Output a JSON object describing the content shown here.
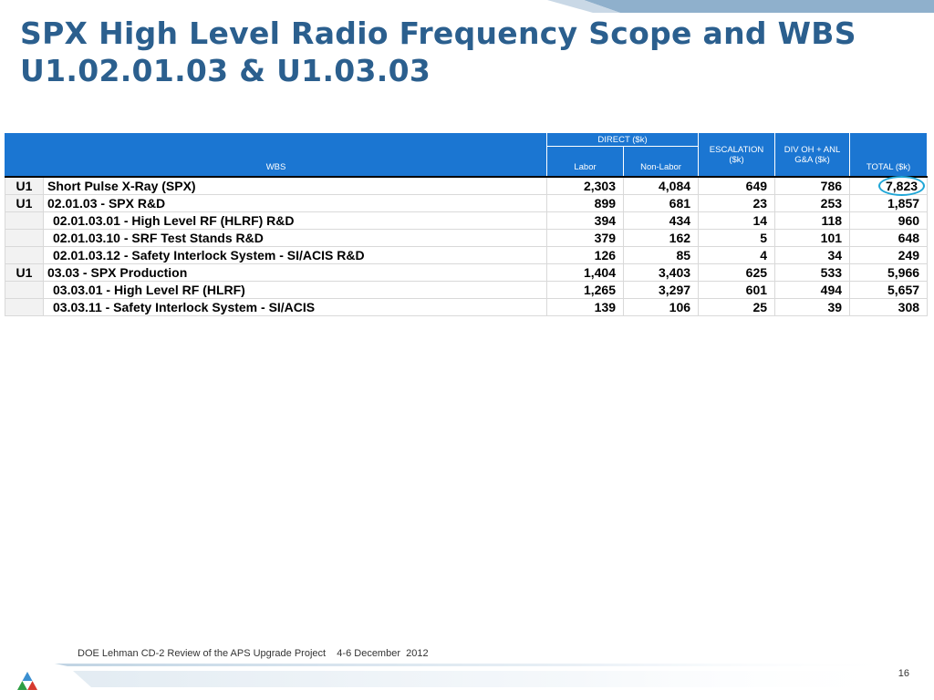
{
  "slide": {
    "title_line1": "SPX High Level Radio Frequency Scope and WBS",
    "title_line2": "U1.02.01.03 & U1.03.03",
    "footer": "DOE Lehman CD-2 Review of the APS Upgrade Project    4-6 December  2012",
    "page_number": "16",
    "colors": {
      "title": "#2b5f8e",
      "header": "#1b76d2",
      "highlight_circle": "#1fa6d6"
    }
  },
  "table": {
    "headers": {
      "wbs": "WBS",
      "direct": "DIRECT ($k)",
      "labor": "Labor",
      "non_labor": "Non-Labor",
      "escalation_1": "ESCALATION",
      "escalation_2": "($k)",
      "div_oh_1": "DIV OH + ANL",
      "div_oh_2": "G&A ($k)",
      "total": "TOTAL ($k)"
    },
    "rows": [
      {
        "level": "U1",
        "name": "Short Pulse X-Ray (SPX)",
        "labor": "2,303",
        "non_labor": "4,084",
        "escalation": "649",
        "div_oh": "786",
        "total": "7,823"
      },
      {
        "level": "U1",
        "name": "02.01.03 - SPX R&D",
        "labor": "899",
        "non_labor": "681",
        "escalation": "23",
        "div_oh": "253",
        "total": "1,857"
      },
      {
        "level": "",
        "name": "02.01.03.01 - High Level RF (HLRF) R&D",
        "labor": "394",
        "non_labor": "434",
        "escalation": "14",
        "div_oh": "118",
        "total": "960"
      },
      {
        "level": "",
        "name": "02.01.03.10 - SRF Test Stands R&D",
        "labor": "379",
        "non_labor": "162",
        "escalation": "5",
        "div_oh": "101",
        "total": "648"
      },
      {
        "level": "",
        "name": "02.01.03.12 - Safety Interlock System - SI/ACIS R&D",
        "labor": "126",
        "non_labor": "85",
        "escalation": "4",
        "div_oh": "34",
        "total": "249"
      },
      {
        "level": "U1",
        "name": "03.03 - SPX Production",
        "labor": "1,404",
        "non_labor": "3,403",
        "escalation": "625",
        "div_oh": "533",
        "total": "5,966"
      },
      {
        "level": "",
        "name": "03.03.01 - High Level RF (HLRF)",
        "labor": "1,265",
        "non_labor": "3,297",
        "escalation": "601",
        "div_oh": "494",
        "total": "5,657"
      },
      {
        "level": "",
        "name": "03.03.11 - Safety Interlock System - SI/ACIS",
        "labor": "139",
        "non_labor": "106",
        "escalation": "25",
        "div_oh": "39",
        "total": "308"
      }
    ]
  }
}
